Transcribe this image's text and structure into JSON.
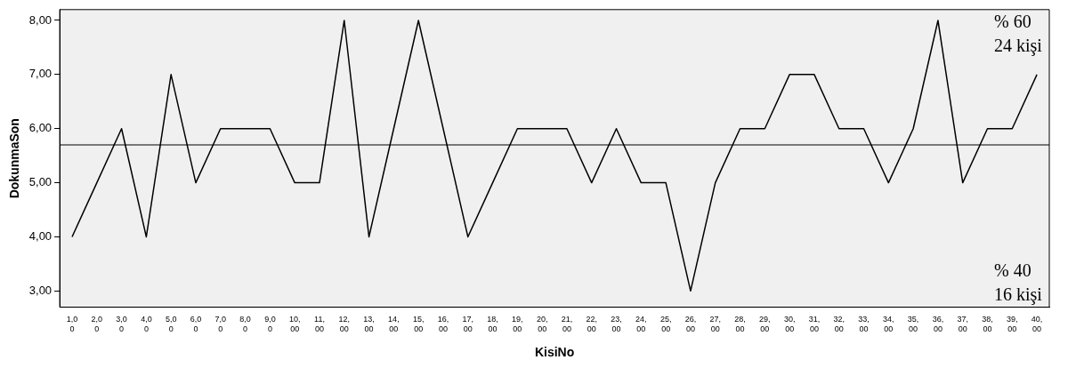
{
  "chart_data": {
    "type": "line",
    "xlabel": "KisiNo",
    "ylabel": "DokunmaSon",
    "categories": [
      "1,00",
      "2,00",
      "3,00",
      "4,00",
      "5,00",
      "6,00",
      "7,00",
      "8,00",
      "9,00",
      "10,00",
      "11,00",
      "12,00",
      "13,00",
      "14,00",
      "15,00",
      "16,00",
      "17,00",
      "18,00",
      "19,00",
      "20,00",
      "21,00",
      "22,00",
      "23,00",
      "24,00",
      "25,00",
      "26,00",
      "27,00",
      "28,00",
      "29,00",
      "30,00",
      "31,00",
      "32,00",
      "33,00",
      "34,00",
      "35,00",
      "36,00",
      "37,00",
      "38,00",
      "39,00",
      "40,00"
    ],
    "series": [
      {
        "color": "#000000",
        "values": [
          4,
          5,
          6,
          4,
          7,
          5,
          6,
          6,
          6,
          5,
          5,
          8,
          4,
          6,
          8,
          6,
          4,
          5,
          6,
          6,
          6,
          5,
          6,
          5,
          5,
          3,
          5,
          6,
          6,
          7,
          7,
          6,
          6,
          5,
          6,
          8,
          5,
          6,
          6,
          7
        ]
      }
    ],
    "ylim": [
      2.7,
      8.2
    ],
    "yticks": [
      {
        "value": 3,
        "label": "3,00"
      },
      {
        "value": 4,
        "label": "4,00"
      },
      {
        "value": 5,
        "label": "5,00"
      },
      {
        "value": 6,
        "label": "6,00"
      },
      {
        "value": 7,
        "label": "7,00"
      },
      {
        "value": 8,
        "label": "8,00"
      }
    ],
    "ref_lines": [
      {
        "axis": "y",
        "value": 5.7,
        "color": "#000000"
      }
    ],
    "annotations": [
      "% 60\n24 kişi",
      "% 40\n16 kişi"
    ],
    "grid": false,
    "legend": false,
    "marker": "none",
    "line_style": "solid"
  }
}
